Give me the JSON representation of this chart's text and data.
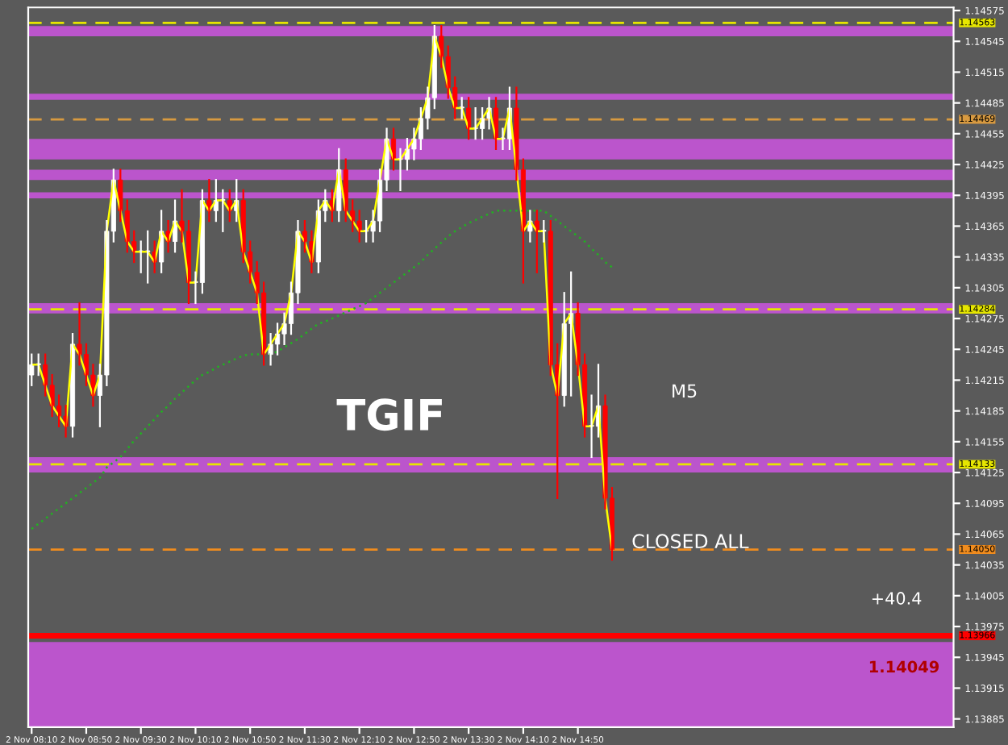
{
  "chart_data": {
    "type": "candlestick",
    "categories": [
      "2 Nov 08:10",
      null,
      null,
      null,
      null,
      null,
      null,
      null,
      "2 Nov 08:50",
      null,
      null,
      null,
      null,
      null,
      null,
      null,
      "2 Nov 09:30",
      null,
      null,
      null,
      null,
      null,
      null,
      null,
      "2 Nov 10:10",
      null,
      null,
      null,
      null,
      null,
      null,
      null,
      "2 Nov 10:50",
      null,
      null,
      null,
      null,
      null,
      null,
      null,
      "2 Nov 11:30",
      null,
      null,
      null,
      null,
      null,
      null,
      null,
      "2 Nov 12:10",
      null,
      null,
      null,
      null,
      null,
      null,
      null,
      "2 Nov 12:50",
      null,
      null,
      null,
      null,
      null,
      null,
      null,
      "2 Nov 13:30",
      null,
      null,
      null,
      null,
      null,
      null,
      null,
      "2 Nov 14:10",
      null,
      null,
      null,
      null,
      null,
      null,
      null,
      "2 Nov 14:50",
      null,
      null,
      null,
      null,
      null
    ],
    "ohlc": [
      [
        1.1422,
        1.1424,
        1.1421,
        1.1423
      ],
      [
        1.1423,
        1.1424,
        1.1422,
        1.1423
      ],
      [
        1.1423,
        1.1424,
        1.142,
        1.1421
      ],
      [
        1.1421,
        1.1422,
        1.1418,
        1.1419
      ],
      [
        1.1419,
        1.142,
        1.1417,
        1.1418
      ],
      [
        1.1418,
        1.1419,
        1.1416,
        1.1417
      ],
      [
        1.1417,
        1.1426,
        1.1416,
        1.1425
      ],
      [
        1.1425,
        1.1429,
        1.1423,
        1.1424
      ],
      [
        1.1424,
        1.1425,
        1.1421,
        1.1422
      ],
      [
        1.1422,
        1.1423,
        1.1419,
        1.142
      ],
      [
        1.142,
        1.1423,
        1.1417,
        1.1422
      ],
      [
        1.1422,
        1.1437,
        1.1421,
        1.1436
      ],
      [
        1.1436,
        1.1442,
        1.1435,
        1.1441
      ],
      [
        1.1441,
        1.1442,
        1.1437,
        1.1438
      ],
      [
        1.1438,
        1.1439,
        1.1434,
        1.1435
      ],
      [
        1.1435,
        1.1436,
        1.1433,
        1.1434
      ],
      [
        1.1434,
        1.1435,
        1.1432,
        1.1434
      ],
      [
        1.1434,
        1.1436,
        1.1431,
        1.1434
      ],
      [
        1.1434,
        1.1435,
        1.1432,
        1.1433
      ],
      [
        1.1433,
        1.1438,
        1.1432,
        1.1436
      ],
      [
        1.1436,
        1.1437,
        1.1434,
        1.1435
      ],
      [
        1.1435,
        1.1439,
        1.1434,
        1.1437
      ],
      [
        1.1437,
        1.144,
        1.1435,
        1.1436
      ],
      [
        1.1436,
        1.1437,
        1.1429,
        1.1431
      ],
      [
        1.1431,
        1.1432,
        1.1429,
        1.1431
      ],
      [
        1.1431,
        1.144,
        1.143,
        1.1439
      ],
      [
        1.1439,
        1.1441,
        1.1437,
        1.1438
      ],
      [
        1.1438,
        1.1441,
        1.1437,
        1.1439
      ],
      [
        1.1439,
        1.144,
        1.1436,
        1.1439
      ],
      [
        1.1439,
        1.144,
        1.1437,
        1.1438
      ],
      [
        1.1438,
        1.1441,
        1.1437,
        1.1439
      ],
      [
        1.1439,
        1.144,
        1.1433,
        1.1434
      ],
      [
        1.1434,
        1.1435,
        1.1431,
        1.1432
      ],
      [
        1.1432,
        1.1433,
        1.1429,
        1.143
      ],
      [
        1.143,
        1.1431,
        1.1423,
        1.1424
      ],
      [
        1.1424,
        1.1426,
        1.1423,
        1.1425
      ],
      [
        1.1425,
        1.1427,
        1.1424,
        1.1426
      ],
      [
        1.1426,
        1.1428,
        1.1425,
        1.1427
      ],
      [
        1.1427,
        1.1431,
        1.1426,
        1.143
      ],
      [
        1.143,
        1.1437,
        1.1429,
        1.1436
      ],
      [
        1.1436,
        1.1437,
        1.1434,
        1.1435
      ],
      [
        1.1435,
        1.1436,
        1.1432,
        1.1433
      ],
      [
        1.1433,
        1.1439,
        1.1432,
        1.1438
      ],
      [
        1.1438,
        1.144,
        1.1437,
        1.1439
      ],
      [
        1.1439,
        1.144,
        1.1437,
        1.1438
      ],
      [
        1.1438,
        1.1444,
        1.1437,
        1.1442
      ],
      [
        1.1442,
        1.1443,
        1.1437,
        1.1438
      ],
      [
        1.1438,
        1.1439,
        1.1436,
        1.1437
      ],
      [
        1.1437,
        1.1438,
        1.1435,
        1.1436
      ],
      [
        1.1436,
        1.1437,
        1.1435,
        1.1436
      ],
      [
        1.1436,
        1.1438,
        1.1435,
        1.1437
      ],
      [
        1.1437,
        1.1442,
        1.1436,
        1.1441
      ],
      [
        1.1441,
        1.1446,
        1.144,
        1.1445
      ],
      [
        1.1445,
        1.1446,
        1.1442,
        1.1443
      ],
      [
        1.1443,
        1.1444,
        1.144,
        1.1443
      ],
      [
        1.1443,
        1.1445,
        1.1442,
        1.1444
      ],
      [
        1.1444,
        1.1446,
        1.1443,
        1.1445
      ],
      [
        1.1445,
        1.1448,
        1.1444,
        1.1447
      ],
      [
        1.1447,
        1.145,
        1.1446,
        1.1449
      ],
      [
        1.1449,
        1.1456,
        1.1448,
        1.1455
      ],
      [
        1.1455,
        1.1456,
        1.1452,
        1.1453
      ],
      [
        1.1453,
        1.1454,
        1.1449,
        1.145
      ],
      [
        1.145,
        1.1451,
        1.1447,
        1.1448
      ],
      [
        1.1448,
        1.1449,
        1.1447,
        1.1448
      ],
      [
        1.1448,
        1.1449,
        1.1445,
        1.1446
      ],
      [
        1.1446,
        1.1448,
        1.1445,
        1.1446
      ],
      [
        1.1446,
        1.1448,
        1.1445,
        1.1447
      ],
      [
        1.1447,
        1.1449,
        1.1446,
        1.1448
      ],
      [
        1.1448,
        1.1449,
        1.1444,
        1.1445
      ],
      [
        1.1445,
        1.1446,
        1.1444,
        1.1445
      ],
      [
        1.1445,
        1.145,
        1.1444,
        1.1448
      ],
      [
        1.1448,
        1.145,
        1.1441,
        1.1442
      ],
      [
        1.1442,
        1.1443,
        1.1431,
        1.1436
      ],
      [
        1.1436,
        1.1438,
        1.1435,
        1.1437
      ],
      [
        1.1437,
        1.1438,
        1.1432,
        1.1436
      ],
      [
        1.1436,
        1.1437,
        1.1435,
        1.1436
      ],
      [
        1.1436,
        1.1437,
        1.1422,
        1.1423
      ],
      [
        1.1423,
        1.1425,
        1.141,
        1.142
      ],
      [
        1.142,
        1.143,
        1.1419,
        1.1427
      ],
      [
        1.1427,
        1.1432,
        1.142,
        1.1428
      ],
      [
        1.1428,
        1.1429,
        1.1422,
        1.1423
      ],
      [
        1.1423,
        1.1424,
        1.1416,
        1.1417
      ],
      [
        1.1417,
        1.142,
        1.1414,
        1.1417
      ],
      [
        1.1417,
        1.1423,
        1.1416,
        1.1419
      ],
      [
        1.1419,
        1.142,
        1.1409,
        1.141
      ],
      [
        1.141,
        1.1411,
        1.1404,
        1.1405
      ]
    ],
    "colors": [
      "#ffffff",
      "#ffffff",
      "#ff0000",
      "#ff0000",
      "#ff0000",
      "#ff0000",
      "#ffffff",
      "#ff0000",
      "#ff0000",
      "#ff0000",
      "#ffffff",
      "#ffffff",
      "#ffffff",
      "#ff0000",
      "#ff0000",
      "#ff0000",
      "#ffffff",
      "#ffffff",
      "#ff0000",
      "#ffffff",
      "#ff0000",
      "#ffffff",
      "#ff0000",
      "#ff0000",
      "#ffffff",
      "#ffffff",
      "#ff0000",
      "#ffffff",
      "#ffffff",
      "#ff0000",
      "#ffffff",
      "#ff0000",
      "#ff0000",
      "#ff0000",
      "#ff0000",
      "#ffffff",
      "#ffffff",
      "#ffffff",
      "#ffffff",
      "#ffffff",
      "#ff0000",
      "#ff0000",
      "#ffffff",
      "#ffffff",
      "#ff0000",
      "#ffffff",
      "#ff0000",
      "#ff0000",
      "#ff0000",
      "#ffffff",
      "#ffffff",
      "#ffffff",
      "#ffffff",
      "#ff0000",
      "#ffffff",
      "#ffffff",
      "#ffffff",
      "#ffffff",
      "#ffffff",
      "#ffffff",
      "#ff0000",
      "#ff0000",
      "#ff0000",
      "#ffffff",
      "#ff0000",
      "#ffffff",
      "#ffffff",
      "#ffffff",
      "#ff0000",
      "#ffffff",
      "#ffffff",
      "#ff0000",
      "#ff0000",
      "#ffffff",
      "#ff0000",
      "#ffffff",
      "#ff0000",
      "#ff0000",
      "#ffffff",
      "#ffffff",
      "#ff0000",
      "#ff0000",
      "#ffffff",
      "#ffffff",
      "#ff0000",
      "#ff0000"
    ],
    "series": [
      {
        "type": "line",
        "color": "#ffff00",
        "line_style": "solid",
        "values": [
          1.1423,
          1.1423,
          1.1421,
          1.1419,
          1.1418,
          1.1417,
          1.1425,
          1.1424,
          1.1422,
          1.142,
          1.1422,
          1.1436,
          1.1441,
          1.1438,
          1.1435,
          1.1434,
          1.1434,
          1.1434,
          1.1433,
          1.1436,
          1.1435,
          1.1437,
          1.1436,
          1.1431,
          1.1431,
          1.1439,
          1.1438,
          1.1439,
          1.1439,
          1.1438,
          1.1439,
          1.1434,
          1.1432,
          1.143,
          1.1424,
          1.1425,
          1.1426,
          1.1427,
          1.143,
          1.1436,
          1.1435,
          1.1433,
          1.1438,
          1.1439,
          1.1438,
          1.1442,
          1.1438,
          1.1437,
          1.1436,
          1.1436,
          1.1437,
          1.1441,
          1.1445,
          1.1443,
          1.1443,
          1.1444,
          1.1445,
          1.1447,
          1.1449,
          1.1455,
          1.1453,
          1.145,
          1.1448,
          1.1448,
          1.1446,
          1.1446,
          1.1447,
          1.1448,
          1.1445,
          1.1445,
          1.1448,
          1.1442,
          1.1436,
          1.1437,
          1.1436,
          1.1436,
          1.1423,
          1.142,
          1.1427,
          1.1428,
          1.1423,
          1.1417,
          1.1417,
          1.1419,
          1.141,
          1.1405
        ]
      },
      {
        "type": "line",
        "color": "#22b022",
        "line_style": "dotted",
        "values": [
          1.1407,
          1.14075,
          1.1408,
          1.14085,
          1.1409,
          1.14095,
          1.141,
          1.14105,
          1.1411,
          1.14115,
          1.1412,
          1.1413,
          1.14135,
          1.1414,
          1.14148,
          1.14156,
          1.14163,
          1.1417,
          1.14177,
          1.14184,
          1.1419,
          1.14197,
          1.14203,
          1.14209,
          1.14215,
          1.1422,
          1.14223,
          1.14227,
          1.1423,
          1.14233,
          1.14236,
          1.14239,
          1.1424,
          1.1424,
          1.1424,
          1.1424,
          1.14243,
          1.14247,
          1.14251,
          1.14255,
          1.1426,
          1.14265,
          1.1427,
          1.14272,
          1.14275,
          1.14278,
          1.14281,
          1.14284,
          1.14287,
          1.1429,
          1.14295,
          1.143,
          1.14305,
          1.1431,
          1.14315,
          1.1432,
          1.14325,
          1.1433,
          1.14337,
          1.14343,
          1.14349,
          1.14355,
          1.1436,
          1.14364,
          1.14368,
          1.14371,
          1.14374,
          1.14377,
          1.1438,
          1.1438,
          1.1438,
          1.1438,
          1.1438,
          1.1438,
          1.1438,
          1.1438,
          1.14375,
          1.1437,
          1.14365,
          1.1436,
          1.14355,
          1.1435,
          1.14343,
          1.14337,
          1.1433,
          1.14325
        ]
      }
    ],
    "ylim": [
      1.13877,
      1.14578
    ],
    "yticks": [
      1.14575,
      1.14545,
      1.14515,
      1.14485,
      1.14455,
      1.14425,
      1.14395,
      1.14365,
      1.14335,
      1.14305,
      1.14275,
      1.14245,
      1.14215,
      1.14185,
      1.14155,
      1.14125,
      1.14095,
      1.14065,
      1.14035,
      1.14005,
      1.13975,
      1.13945,
      1.13915,
      1.13885
    ],
    "ref_lines": [
      {
        "axis": "y",
        "value": 1.14563,
        "label": "1.14563",
        "color": "#e6e600",
        "line_style": "dashed"
      },
      {
        "axis": "y",
        "value": 1.14469,
        "label": "1.14469",
        "color": "#d89a40",
        "line_style": "dashed"
      },
      {
        "axis": "y",
        "value": 1.14284,
        "label": "1.14284",
        "color": "#e6e600",
        "line_style": "dashed"
      },
      {
        "axis": "y",
        "value": 1.14133,
        "label": "1.14133",
        "color": "#e6e600",
        "line_style": "dashed"
      },
      {
        "axis": "y",
        "value": 1.1405,
        "label": "1.14050",
        "color": "#f08c1e",
        "line_style": "dashed"
      },
      {
        "axis": "y",
        "value": 1.13966,
        "label": "1.13966",
        "color": "#ff0000",
        "line_style": "solid"
      }
    ],
    "bands": [
      {
        "axis": "y",
        "from": 1.1455,
        "to": 1.1456,
        "color": "#bb55cc"
      },
      {
        "axis": "y",
        "from": 1.14488,
        "to": 1.14494,
        "color": "#bb55cc"
      },
      {
        "axis": "y",
        "from": 1.1443,
        "to": 1.1445,
        "color": "#bb55cc"
      },
      {
        "axis": "y",
        "from": 1.1441,
        "to": 1.1442,
        "color": "#bb55cc"
      },
      {
        "axis": "y",
        "from": 1.14392,
        "to": 1.14398,
        "color": "#bb55cc"
      },
      {
        "axis": "y",
        "from": 1.1428,
        "to": 1.1429,
        "color": "#bb55cc"
      },
      {
        "axis": "y",
        "from": 1.14125,
        "to": 1.1414,
        "color": "#bb55cc"
      },
      {
        "axis": "y",
        "from": 1.13877,
        "to": 1.1396,
        "color": "#bb55cc"
      }
    ],
    "annotations": [
      "TGIF",
      "M5",
      "CLOSED ALL",
      "+40.4",
      "1.14049"
    ],
    "grid": false,
    "legend": false
  }
}
